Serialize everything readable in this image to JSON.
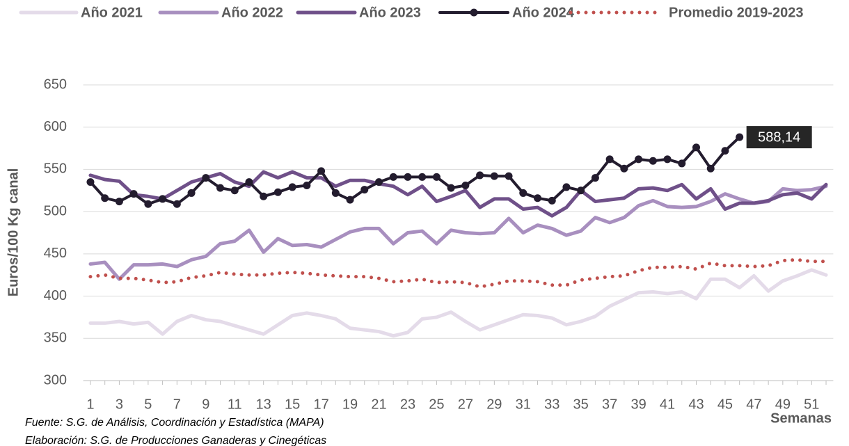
{
  "chart_data": {
    "type": "line",
    "y_label": "Euros/100 Kg canal",
    "x_label": "Semanas",
    "notes": [
      "Fuente: S.G. de Análisis, Coordinación y Estadística (MAPA)",
      "Elaboración: S.G. de Producciones Ganaderas y Cinegéticas"
    ],
    "x": [
      1,
      2,
      3,
      4,
      5,
      6,
      7,
      8,
      9,
      10,
      11,
      12,
      13,
      14,
      15,
      16,
      17,
      18,
      19,
      20,
      21,
      22,
      23,
      24,
      25,
      26,
      27,
      28,
      29,
      30,
      31,
      32,
      33,
      34,
      35,
      36,
      37,
      38,
      39,
      40,
      41,
      42,
      43,
      44,
      45,
      46,
      47,
      48,
      49,
      50,
      51,
      52
    ],
    "xlim": [
      0.5,
      52.5
    ],
    "xticks": [
      1,
      3,
      5,
      7,
      9,
      11,
      13,
      15,
      17,
      19,
      21,
      23,
      25,
      27,
      29,
      31,
      33,
      35,
      37,
      39,
      41,
      43,
      45,
      47,
      49,
      51
    ],
    "ylim": [
      300,
      650
    ],
    "yticks": [
      300,
      350,
      400,
      450,
      500,
      550,
      600,
      650
    ],
    "grid": true,
    "legend": "top",
    "series": [
      {
        "name": "Año 2021",
        "color": "#e4dbe9",
        "values": [
          368,
          368,
          370,
          367,
          369,
          355,
          370,
          377,
          372,
          370,
          365,
          360,
          355,
          366,
          377,
          380,
          377,
          373,
          362,
          360,
          358,
          353,
          357,
          373,
          375,
          381,
          370,
          360,
          366,
          372,
          378,
          377,
          374,
          366,
          370,
          376,
          388,
          396,
          404,
          405,
          403,
          405,
          397,
          420,
          420,
          410,
          424,
          406,
          418,
          424,
          431,
          425
        ]
      },
      {
        "name": "Año 2022",
        "color": "#a88fbf",
        "values": [
          438,
          440,
          420,
          437,
          437,
          438,
          435,
          443,
          447,
          462,
          465,
          478,
          452,
          468,
          460,
          461,
          458,
          467,
          476,
          480,
          480,
          462,
          475,
          477,
          462,
          478,
          475,
          474,
          475,
          492,
          475,
          484,
          480,
          472,
          477,
          493,
          487,
          493,
          507,
          513,
          506,
          505,
          506,
          512,
          521,
          515,
          510,
          512,
          527,
          525,
          526,
          530
        ]
      },
      {
        "name": "Año 2023",
        "color": "#6f5089",
        "values": [
          543,
          538,
          536,
          520,
          518,
          515,
          525,
          535,
          540,
          545,
          535,
          530,
          547,
          540,
          547,
          540,
          540,
          530,
          537,
          537,
          533,
          530,
          520,
          530,
          512,
          518,
          525,
          505,
          515,
          515,
          503,
          505,
          495,
          505,
          525,
          512,
          514,
          516,
          527,
          528,
          525,
          532,
          515,
          527,
          503,
          510,
          510,
          513,
          520,
          522,
          515,
          532
        ]
      },
      {
        "name": "Año 2024",
        "color": "#231c2e",
        "markers": true,
        "values": [
          535,
          516,
          512,
          521,
          509,
          515,
          509,
          522,
          540,
          528,
          525,
          535,
          518,
          523,
          529,
          531,
          548,
          522,
          514,
          526,
          535,
          541,
          541,
          541,
          541,
          528,
          531,
          543,
          542,
          542,
          522,
          516,
          513,
          529,
          525,
          540,
          562,
          551,
          562,
          560,
          562,
          557,
          576,
          551,
          572,
          588.14,
          null,
          null,
          null,
          null,
          null,
          null
        ],
        "value_labels": [
          null,
          null,
          null,
          null,
          null,
          null,
          null,
          null,
          null,
          null,
          null,
          null,
          null,
          null,
          null,
          null,
          null,
          null,
          null,
          null,
          null,
          null,
          null,
          null,
          null,
          null,
          null,
          null,
          null,
          null,
          null,
          null,
          null,
          null,
          null,
          null,
          null,
          null,
          null,
          null,
          null,
          null,
          null,
          null,
          null,
          "588,14",
          null,
          null,
          null,
          null,
          null,
          null
        ]
      },
      {
        "name": "Promedio 2019-2023",
        "color": "#c0504d",
        "dash": "dotted",
        "values": [
          423,
          425,
          421,
          421,
          419,
          416,
          417,
          422,
          424,
          428,
          426,
          425,
          425,
          427,
          428,
          427,
          425,
          424,
          423,
          423,
          421,
          417,
          418,
          420,
          416,
          417,
          416,
          411,
          414,
          418,
          418,
          417,
          413,
          413,
          419,
          421,
          423,
          424,
          430,
          434,
          434,
          435,
          432,
          439,
          436,
          436,
          435,
          436,
          442,
          443,
          441,
          441
        ]
      }
    ]
  }
}
